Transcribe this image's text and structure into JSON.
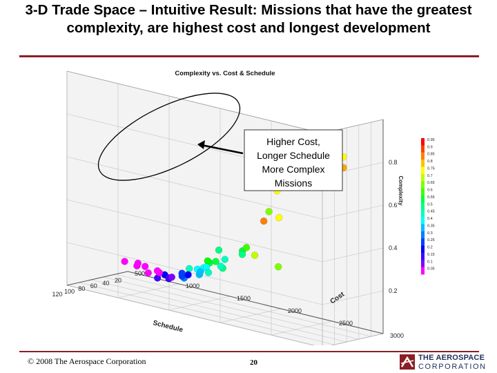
{
  "slide": {
    "title": "3-D Trade Space – Intuitive Result: Missions that have the greatest complexity, are highest cost and longest development",
    "copyright": "© 2008 The Aerospace Corporation",
    "page_number": "20",
    "logo": {
      "line1": "THE AEROSPACE",
      "line2": "CORPORATION"
    },
    "colors": {
      "rule": "#8b1e26",
      "logo": "#1f2f5c"
    }
  },
  "callout": {
    "lines": [
      "Higher Cost,",
      "Longer Schedule",
      "More Complex",
      "Missions"
    ]
  },
  "chart_data": {
    "type": "scatter",
    "projection": "3d",
    "title": "Complexity vs. Cost & Schedule",
    "xlabel": "Schedule",
    "ylabel": "Cost",
    "zlabel": "Complexity",
    "x_ticks": [
      "120",
      "100",
      "80",
      "60",
      "40",
      "20"
    ],
    "y_ticks": [
      "500",
      "1000",
      "1500",
      "2000",
      "2500",
      "3000"
    ],
    "z_ticks": [
      "0.2",
      "0.4",
      "0.6",
      "0.8"
    ],
    "xlim": [
      20,
      120
    ],
    "ylim": [
      500,
      3000
    ],
    "zlim": [
      0,
      1
    ],
    "grid": true,
    "colorbar": {
      "labels": [
        "0.95",
        "0.9",
        "0.85",
        "0.8",
        "0.75",
        "0.7",
        "0.65",
        "0.6",
        "0.55",
        "0.5",
        "0.45",
        "0.4",
        "0.35",
        "0.3",
        "0.25",
        "0.2",
        "0.15",
        "0.1",
        "0.05"
      ],
      "colors": [
        "#ff0000",
        "#ff4000",
        "#ff8000",
        "#ffbf00",
        "#ffff00",
        "#bfff00",
        "#80ff00",
        "#40ff00",
        "#00ff40",
        "#00ff80",
        "#00ffbf",
        "#00ffff",
        "#00bfff",
        "#0080ff",
        "#0040ff",
        "#0000ff",
        "#4000ff",
        "#8000ff",
        "#ff00ff"
      ]
    },
    "points": [
      {
        "schedule": 35,
        "cost": 2700,
        "complexity": 0.8,
        "color": "#ffff00"
      },
      {
        "schedule": 35,
        "cost": 2700,
        "complexity": 0.75,
        "color": "#ffa500"
      },
      {
        "schedule": 75,
        "cost": 2800,
        "complexity": 0.9,
        "color": "#e00000"
      },
      {
        "schedule": 70,
        "cost": 2850,
        "complexity": 0.9,
        "color": "#ff1a1a"
      },
      {
        "schedule": 115,
        "cost": 2850,
        "complexity": 0.75,
        "color": "#ff6a00"
      },
      {
        "schedule": 110,
        "cost": 2900,
        "complexity": 0.75,
        "color": "#ff8c00"
      },
      {
        "schedule": 60,
        "cost": 2200,
        "complexity": 0.6,
        "color": "#ffff00"
      },
      {
        "schedule": 65,
        "cost": 2150,
        "complexity": 0.5,
        "color": "#7fff00"
      },
      {
        "schedule": 65,
        "cost": 2100,
        "complexity": 0.45,
        "color": "#ff7f00"
      },
      {
        "schedule": 40,
        "cost": 2100,
        "complexity": 0.45,
        "color": "#ffff00"
      },
      {
        "schedule": 100,
        "cost": 2450,
        "complexity": 0.3,
        "color": "#7fff00"
      },
      {
        "schedule": 80,
        "cost": 2100,
        "complexity": 0.3,
        "color": "#bfff00"
      },
      {
        "schedule": 75,
        "cost": 1950,
        "complexity": 0.3,
        "color": "#00ff40"
      },
      {
        "schedule": 60,
        "cost": 1900,
        "complexity": 0.3,
        "color": "#40ff00"
      },
      {
        "schedule": 70,
        "cost": 1600,
        "complexity": 0.2,
        "color": "#00ff40"
      },
      {
        "schedule": 60,
        "cost": 1600,
        "complexity": 0.2,
        "color": "#00ff40"
      },
      {
        "schedule": 50,
        "cost": 1800,
        "complexity": 0.25,
        "color": "#00ff80"
      },
      {
        "schedule": 65,
        "cost": 1550,
        "complexity": 0.2,
        "color": "#00ff00"
      },
      {
        "schedule": 55,
        "cost": 1600,
        "complexity": 0.25,
        "color": "#00ff80"
      },
      {
        "schedule": 45,
        "cost": 1600,
        "complexity": 0.2,
        "color": "#00ffbf"
      },
      {
        "schedule": 70,
        "cost": 1400,
        "complexity": 0.15,
        "color": "#00ffbf"
      },
      {
        "schedule": 65,
        "cost": 1450,
        "complexity": 0.15,
        "color": "#00ffff"
      },
      {
        "schedule": 55,
        "cost": 1450,
        "complexity": 0.15,
        "color": "#00ffff"
      },
      {
        "schedule": 50,
        "cost": 1450,
        "complexity": 0.15,
        "color": "#00ffff"
      },
      {
        "schedule": 40,
        "cost": 1550,
        "complexity": 0.15,
        "color": "#00ff80"
      },
      {
        "schedule": 35,
        "cost": 1500,
        "complexity": 0.15,
        "color": "#00ffbf"
      },
      {
        "schedule": 70,
        "cost": 1350,
        "complexity": 0.1,
        "color": "#0080ff"
      },
      {
        "schedule": 65,
        "cost": 1300,
        "complexity": 0.1,
        "color": "#0040ff"
      },
      {
        "schedule": 55,
        "cost": 1300,
        "complexity": 0.1,
        "color": "#0000ff"
      },
      {
        "schedule": 45,
        "cost": 1350,
        "complexity": 0.1,
        "color": "#00bfff"
      },
      {
        "schedule": 35,
        "cost": 1300,
        "complexity": 0.1,
        "color": "#00bfff"
      },
      {
        "schedule": 30,
        "cost": 1350,
        "complexity": 0.1,
        "color": "#00ffbf"
      },
      {
        "schedule": 70,
        "cost": 1200,
        "complexity": 0.08,
        "color": "#0000ff"
      },
      {
        "schedule": 60,
        "cost": 1100,
        "complexity": 0.08,
        "color": "#0000ff"
      },
      {
        "schedule": 55,
        "cost": 1000,
        "complexity": 0.05,
        "color": "#4000ff"
      },
      {
        "schedule": 45,
        "cost": 1050,
        "complexity": 0.05,
        "color": "#4000ff"
      },
      {
        "schedule": 40,
        "cost": 1150,
        "complexity": 0.08,
        "color": "#0040ff"
      },
      {
        "schedule": 40,
        "cost": 1050,
        "complexity": 0.05,
        "color": "#8000ff"
      },
      {
        "schedule": 35,
        "cost": 900,
        "complexity": 0.05,
        "color": "#ff00ff"
      },
      {
        "schedule": 45,
        "cost": 850,
        "complexity": 0.05,
        "color": "#ff00ff"
      },
      {
        "schedule": 30,
        "cost": 850,
        "complexity": 0.05,
        "color": "#ff00ff"
      },
      {
        "schedule": 25,
        "cost": 700,
        "complexity": 0.05,
        "color": "#ff00ff"
      },
      {
        "schedule": 30,
        "cost": 650,
        "complexity": 0.05,
        "color": "#ff00ff"
      },
      {
        "schedule": 20,
        "cost": 600,
        "complexity": 0.05,
        "color": "#ff00ff"
      },
      {
        "schedule": 25,
        "cost": 500,
        "complexity": 0.05,
        "color": "#ff00ff"
      }
    ]
  }
}
